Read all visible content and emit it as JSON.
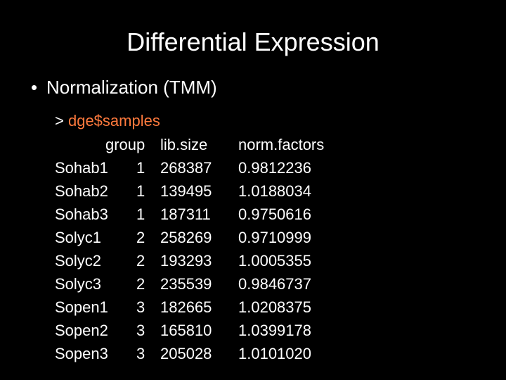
{
  "title": "Differential Expression",
  "bullet": {
    "symbol": "•",
    "text": "Normalization (TMM)"
  },
  "command": {
    "prompt": "> ",
    "code": "dge$samples",
    "code_color": "#ff7a3d"
  },
  "table": {
    "headers": {
      "group": "group",
      "lib_size": "lib.size",
      "norm_factors": "norm.factors"
    },
    "rows": [
      {
        "name": "Sohab1",
        "group": "1",
        "lib_size": "268387",
        "norm_factors": "0.9812236"
      },
      {
        "name": "Sohab2",
        "group": "1",
        "lib_size": "139495",
        "norm_factors": "1.0188034"
      },
      {
        "name": "Sohab3",
        "group": "1",
        "lib_size": "187311",
        "norm_factors": "0.9750616"
      },
      {
        "name": "Solyc1",
        "group": "2",
        "lib_size": "258269",
        "norm_factors": "0.9710999"
      },
      {
        "name": "Solyc2",
        "group": "2",
        "lib_size": "193293",
        "norm_factors": "1.0005355"
      },
      {
        "name": "Solyc3",
        "group": "2",
        "lib_size": "235539",
        "norm_factors": "0.9846737"
      },
      {
        "name": "Sopen1",
        "group": "3",
        "lib_size": "182665",
        "norm_factors": "1.0208375"
      },
      {
        "name": "Sopen2",
        "group": "3",
        "lib_size": "165810",
        "norm_factors": "1.0399178"
      },
      {
        "name": "Sopen3",
        "group": "3",
        "lib_size": "205028",
        "norm_factors": "1.0101020"
      }
    ]
  }
}
